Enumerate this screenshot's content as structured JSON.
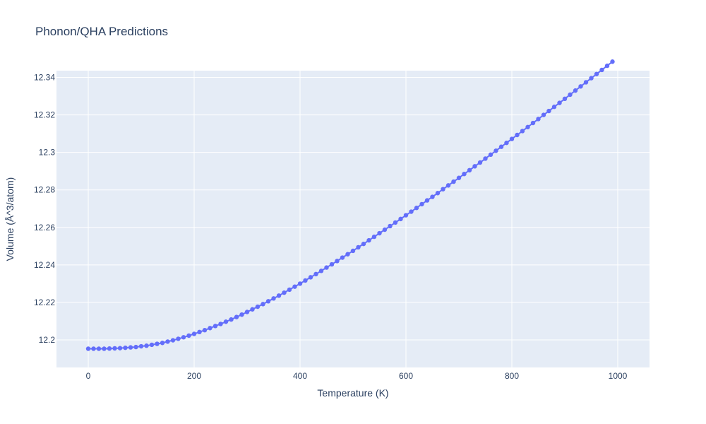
{
  "chart_data": {
    "type": "line",
    "title": "Phonon/QHA Predictions",
    "xlabel": "Temperature (K)",
    "ylabel": "Volume (Å^3/atom)",
    "xlim": [
      -60,
      1060
    ],
    "ylim": [
      12.1853,
      12.3436
    ],
    "x_ticks": [
      0,
      200,
      400,
      600,
      800,
      1000
    ],
    "x_tick_labels": [
      "0",
      "200",
      "400",
      "600",
      "800",
      "1000"
    ],
    "y_ticks": [
      12.2,
      12.22,
      12.24,
      12.26,
      12.28,
      12.3,
      12.32,
      12.34
    ],
    "y_tick_labels": [
      "12.2",
      "12.22",
      "12.24",
      "12.26",
      "12.28",
      "12.3",
      "12.32",
      "12.34"
    ],
    "grid": true,
    "legend": "none",
    "colors": {
      "plot_bg": "#e5ecf6",
      "grid": "#ffffff",
      "series": "#636efa",
      "text": "#2a3f5f"
    },
    "series": [
      {
        "x": [
          0,
          10,
          20,
          30,
          40,
          50,
          60,
          70,
          80,
          90,
          100,
          110,
          120,
          130,
          140,
          150,
          160,
          170,
          180,
          190,
          200,
          210,
          220,
          230,
          240,
          250,
          260,
          270,
          280,
          290,
          300,
          310,
          320,
          330,
          340,
          350,
          360,
          370,
          380,
          390,
          400,
          410,
          420,
          430,
          440,
          450,
          460,
          470,
          480,
          490,
          500,
          510,
          520,
          530,
          540,
          550,
          560,
          570,
          580,
          590,
          600,
          610,
          620,
          630,
          640,
          650,
          660,
          670,
          680,
          690,
          700,
          710,
          720,
          730,
          740,
          750,
          760,
          770,
          780,
          790,
          800,
          810,
          820,
          830,
          840,
          850,
          860,
          870,
          880,
          890,
          900,
          910,
          920,
          930,
          940,
          950,
          960,
          970,
          980,
          990
        ],
        "y": [
          12.1953,
          12.1953,
          12.1953,
          12.1953,
          12.1954,
          12.1955,
          12.1956,
          12.1958,
          12.196,
          12.1962,
          12.1966,
          12.1969,
          12.1974,
          12.1979,
          12.1984,
          12.1991,
          12.1998,
          12.2006,
          12.2014,
          12.2023,
          12.2032,
          12.2042,
          12.2052,
          12.2063,
          12.2074,
          12.2085,
          12.2097,
          12.2109,
          12.2122,
          12.2135,
          12.2149,
          12.2163,
          12.2177,
          12.2191,
          12.2206,
          12.2221,
          12.2236,
          12.2252,
          12.2268,
          12.2284,
          12.23,
          12.2317,
          12.2334,
          12.2351,
          12.2368,
          12.2386,
          12.2403,
          12.2421,
          12.2439,
          12.2457,
          12.2475,
          12.2494,
          12.2512,
          12.2531,
          12.255,
          12.2569,
          12.2588,
          12.2607,
          12.2626,
          12.2645,
          12.2665,
          12.2684,
          12.2704,
          12.2724,
          12.2744,
          12.2763,
          12.2783,
          12.2804,
          12.2824,
          12.2844,
          12.2864,
          12.2885,
          12.2905,
          12.2926,
          12.2946,
          12.2967,
          12.2988,
          12.3009,
          12.303,
          12.3051,
          12.3072,
          12.3093,
          12.3114,
          12.3135,
          12.3157,
          12.3178,
          12.32,
          12.3221,
          12.3243,
          12.3264,
          12.3286,
          12.3308,
          12.333,
          12.3352,
          12.3374,
          12.3396,
          12.3418,
          12.344,
          12.3462,
          12.3484
        ]
      }
    ]
  }
}
